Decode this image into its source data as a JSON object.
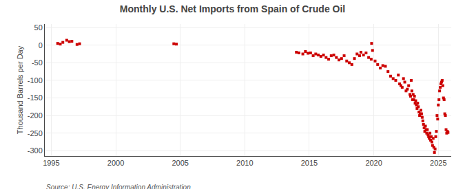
{
  "chart_data": {
    "type": "scatter",
    "title": "Monthly U.S. Net Imports from Spain of Crude Oil",
    "ylabel": "Thousand Barrels per Day",
    "annotations": [
      "Source: U.S. Energy Information Administration"
    ],
    "color": "#cc0000",
    "marker": "square",
    "grid": true,
    "xlim": [
      1994.5,
      2026.0
    ],
    "ylim": [
      -315,
      60
    ],
    "xticks": [
      1995,
      2000,
      2005,
      2010,
      2015,
      2020,
      2025
    ],
    "yticks": [
      50,
      0,
      -50,
      -100,
      -150,
      -200,
      -250,
      -300
    ],
    "x": [
      1995.5,
      1995.7,
      1995.9,
      1996.2,
      1996.4,
      1996.6,
      1997.0,
      1997.2,
      2004.5,
      2004.7,
      2014.0,
      2014.2,
      2014.5,
      2014.7,
      2014.9,
      2015.1,
      2015.3,
      2015.5,
      2015.7,
      2015.9,
      2016.1,
      2016.3,
      2016.5,
      2016.7,
      2016.9,
      2017.1,
      2017.3,
      2017.5,
      2017.7,
      2017.9,
      2018.1,
      2018.3,
      2018.5,
      2018.7,
      2018.9,
      2019.0,
      2019.2,
      2019.4,
      2019.6,
      2019.8,
      2019.83,
      2019.9,
      2020.1,
      2020.3,
      2020.5,
      2020.7,
      2020.9,
      2021.1,
      2021.3,
      2021.5,
      2021.7,
      2021.9,
      2022.0,
      2022.1,
      2022.2,
      2022.3,
      2022.4,
      2022.5,
      2022.6,
      2022.7,
      2022.8,
      2022.85,
      2022.9,
      2022.95,
      2023.0,
      2023.05,
      2023.1,
      2023.15,
      2023.2,
      2023.25,
      2023.3,
      2023.35,
      2023.4,
      2023.45,
      2023.5,
      2023.55,
      2023.6,
      2023.65,
      2023.7,
      2023.75,
      2023.8,
      2023.85,
      2023.9,
      2023.95,
      2024.0,
      2024.05,
      2024.1,
      2024.15,
      2024.2,
      2024.25,
      2024.3,
      2024.35,
      2024.4,
      2024.45,
      2024.5,
      2024.55,
      2024.6,
      2024.65,
      2024.7,
      2024.75,
      2024.8,
      2024.85,
      2024.9,
      2024.95,
      2025.0,
      2025.05,
      2025.1,
      2025.15,
      2025.2,
      2025.25,
      2025.3,
      2025.35,
      2025.4,
      2025.45,
      2025.5,
      2025.55,
      2025.6,
      2025.65,
      2025.7,
      2025.75
    ],
    "values": [
      5,
      3,
      8,
      14,
      10,
      11,
      2,
      4,
      4,
      3,
      -20,
      -22,
      -25,
      -18,
      -23,
      -22,
      -30,
      -25,
      -28,
      -32,
      -28,
      -35,
      -40,
      -30,
      -28,
      -35,
      -42,
      -38,
      -30,
      -45,
      -50,
      -55,
      -38,
      -25,
      -30,
      -20,
      -28,
      -22,
      -35,
      -40,
      5,
      -15,
      -45,
      -55,
      -65,
      -58,
      -60,
      -75,
      -88,
      -95,
      -100,
      -85,
      -110,
      -115,
      -120,
      -95,
      -105,
      -130,
      -125,
      -115,
      -140,
      -145,
      -100,
      -130,
      -155,
      -140,
      -155,
      -145,
      -165,
      -158,
      -170,
      -180,
      -165,
      -175,
      -190,
      -200,
      -195,
      -185,
      -195,
      -205,
      -215,
      -225,
      -235,
      -245,
      -230,
      -240,
      -250,
      -240,
      -255,
      -260,
      -265,
      -250,
      -270,
      -260,
      -275,
      -285,
      -265,
      -290,
      -305,
      -295,
      -260,
      -245,
      -200,
      -210,
      -170,
      -155,
      -130,
      -120,
      -110,
      -105,
      -100,
      -115,
      -150,
      -155,
      -195,
      -200,
      -240,
      -250,
      -245,
      -248
    ]
  }
}
